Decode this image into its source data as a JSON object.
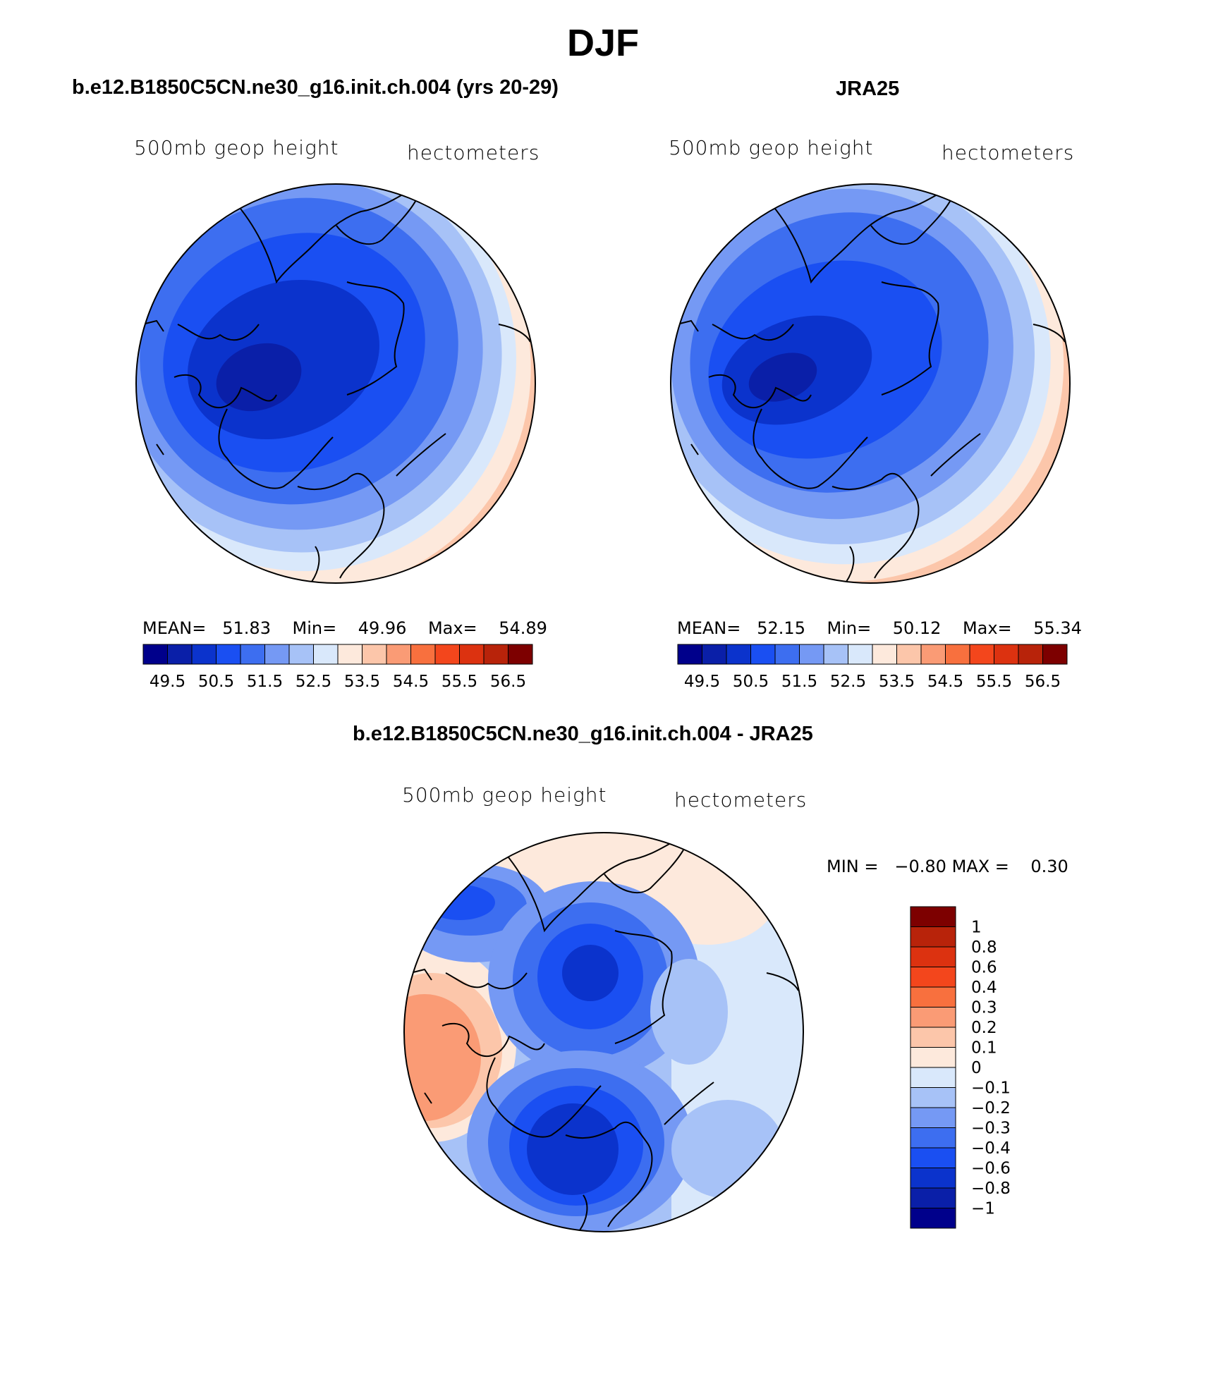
{
  "page": {
    "title": "DJF"
  },
  "panels": {
    "model": {
      "title": "b.e12.B1850C5CN.ne30_g16.init.ch.004 (yrs 20-29)",
      "left_label": "500mb geop height",
      "right_label": "hectometers",
      "stats": {
        "mean_label": "MEAN=",
        "mean": "51.83",
        "min_label": "Min=",
        "min": "49.96",
        "max_label": "Max=",
        "max": "54.89"
      }
    },
    "obs": {
      "title": "JRA25",
      "left_label": "500mb geop height",
      "right_label": "hectometers",
      "stats": {
        "mean_label": "MEAN=",
        "mean": "52.15",
        "min_label": "Min=",
        "min": "50.12",
        "max_label": "Max=",
        "max": "55.34"
      }
    },
    "diff": {
      "title": "b.e12.B1850C5CN.ne30_g16.init.ch.004 - JRA25",
      "left_label": "500mb geop height",
      "right_label": "hectometers",
      "stats": {
        "min_label": "MIN =",
        "min": "−0.80",
        "max_label": "MAX =",
        "max": "0.30"
      }
    }
  },
  "colorbars": {
    "absolute": {
      "colors": [
        "#00008b",
        "#0a1fa8",
        "#0b33cc",
        "#1a4ff2",
        "#3d6ef0",
        "#7599f4",
        "#a7c2f7",
        "#d9e8fb",
        "#fde9dc",
        "#fcc6aa",
        "#fa9b75",
        "#f8703e",
        "#f3461c",
        "#dc3210",
        "#b8230a",
        "#7d0000"
      ],
      "tick_labels": [
        "49.5",
        "50.5",
        "51.5",
        "52.5",
        "53.5",
        "54.5",
        "55.5",
        "56.5"
      ]
    },
    "difference": {
      "colors": [
        "#00008b",
        "#0a1fa8",
        "#0b33cc",
        "#1a4ff2",
        "#3d6ef0",
        "#7599f4",
        "#a7c2f7",
        "#d9e8fb",
        "#fde9dc",
        "#fcc6aa",
        "#fa9b75",
        "#f8703e",
        "#f3461c",
        "#dc3210",
        "#b8230a",
        "#7d0000"
      ],
      "levels": [
        "−1",
        "−0.8",
        "−0.6",
        "−0.4",
        "−0.3",
        "−0.2",
        "−0.1",
        "0",
        "0.1",
        "0.2",
        "0.3",
        "0.4",
        "0.6",
        "0.8",
        "1"
      ]
    }
  },
  "map": {
    "projection": "north polar stereographic",
    "region": "Northern Hemisphere"
  }
}
